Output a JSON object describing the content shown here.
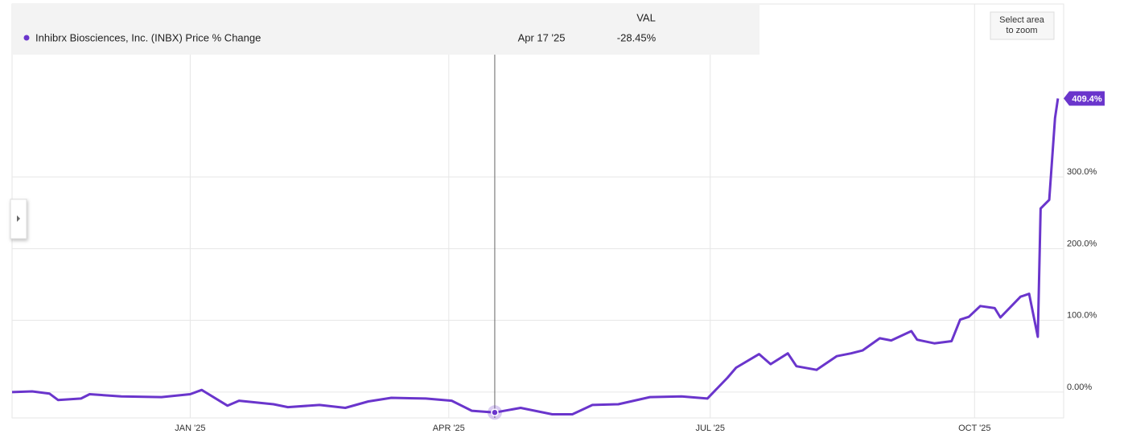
{
  "chart_data": {
    "type": "line",
    "xlim": [
      "2024-10-31",
      "2025-11-01"
    ],
    "xticks": [
      {
        "value": "2025-01-01",
        "label": "JAN '25"
      },
      {
        "value": "2025-04-01",
        "label": "APR '25"
      },
      {
        "value": "2025-07-01",
        "label": "JUL '25"
      },
      {
        "value": "2025-10-01",
        "label": "OCT '25"
      }
    ],
    "ylim": [
      -36,
      541
    ],
    "yticks": [
      {
        "value": 0,
        "label": "0.00%"
      },
      {
        "value": 100,
        "label": "100.0%"
      },
      {
        "value": 200,
        "label": "200.0%"
      },
      {
        "value": 300,
        "label": "300.0%"
      }
    ],
    "grid": true,
    "zoom_button": "Select area to zoom",
    "x": [
      "2024-10-31",
      "2024-11-07",
      "2024-11-13",
      "2024-11-16",
      "2024-11-24",
      "2024-11-27",
      "2024-12-08",
      "2024-12-22",
      "2025-01-01",
      "2025-01-05",
      "2025-01-14",
      "2025-01-18",
      "2025-01-30",
      "2025-02-04",
      "2025-02-15",
      "2025-02-24",
      "2025-03-04",
      "2025-03-12",
      "2025-03-24",
      "2025-04-02",
      "2025-04-09",
      "2025-04-17",
      "2025-04-26",
      "2025-05-07",
      "2025-05-14",
      "2025-05-21",
      "2025-05-30",
      "2025-06-10",
      "2025-06-21",
      "2025-06-30",
      "2025-07-07",
      "2025-07-10",
      "2025-07-18",
      "2025-07-22",
      "2025-07-28",
      "2025-07-31",
      "2025-08-07",
      "2025-08-14",
      "2025-08-19",
      "2025-08-23",
      "2025-08-29",
      "2025-09-02",
      "2025-09-09",
      "2025-09-11",
      "2025-09-17",
      "2025-09-23",
      "2025-09-26",
      "2025-09-29",
      "2025-10-03",
      "2025-10-08",
      "2025-10-10",
      "2025-10-17",
      "2025-10-20",
      "2025-10-23",
      "2025-10-24",
      "2025-10-27",
      "2025-10-29",
      "2025-10-30"
    ],
    "series": [
      {
        "name": "Inhibrx Biosciences, Inc. (INBX) Price % Change",
        "color": "#6a35cc",
        "values": [
          0,
          1,
          -2,
          -11,
          -9,
          -3,
          -6,
          -7,
          -3,
          3,
          -19,
          -12,
          -17,
          -21,
          -18,
          -22,
          -13,
          -8,
          -9,
          -12,
          -26,
          -28.45,
          -22,
          -31,
          -31,
          -18,
          -17,
          -7,
          -6,
          -9,
          20,
          34,
          53,
          39,
          54,
          36,
          31,
          50,
          54,
          58,
          75,
          72,
          85,
          73,
          68,
          71,
          101,
          105,
          120,
          117,
          104,
          133,
          137,
          77,
          256,
          268,
          382,
          409.4
        ],
        "last_value_label": "409.4%"
      }
    ],
    "tooltip": {
      "header": "VAL",
      "x": "2025-04-17",
      "value": -28.45,
      "date_label": "Apr 17 '25",
      "value_label": "-28.45%"
    }
  }
}
